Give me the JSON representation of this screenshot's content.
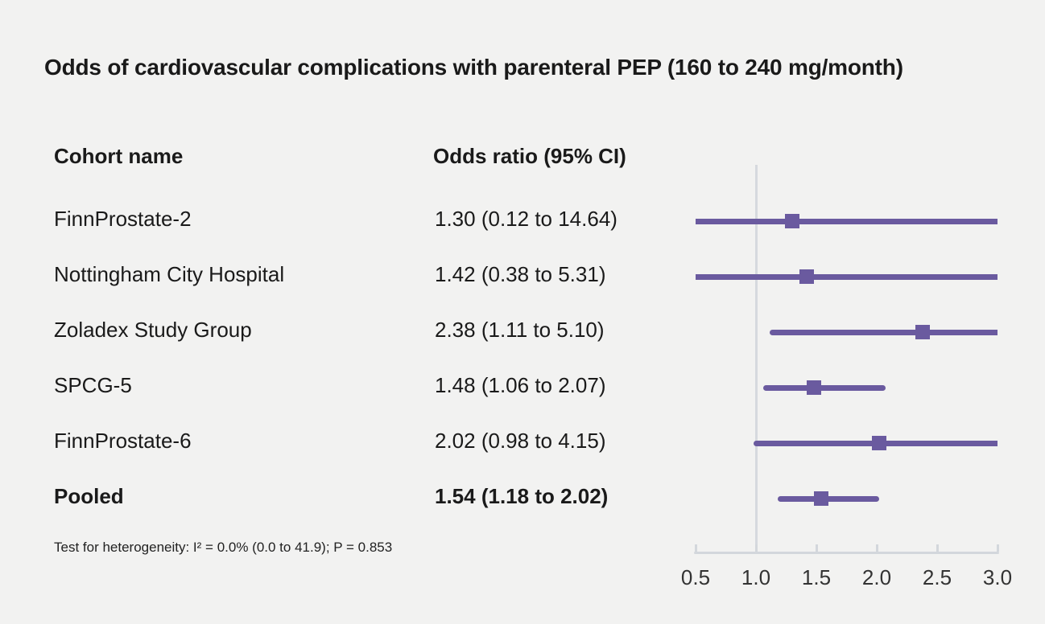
{
  "chart_data": {
    "type": "forest",
    "title": "Odds of cardiovascular complications with parenteral PEP (160 to 240 mg/month)",
    "columns": [
      "Cohort name",
      "Odds ratio (95% CI)"
    ],
    "rows": [
      {
        "label": "FinnProstate-2",
        "display": "1.30 (0.12 to 14.64)",
        "or": 1.3,
        "ci_low": 0.12,
        "ci_high": 14.64,
        "pooled": false
      },
      {
        "label": "Nottingham City Hospital",
        "display": "1.42 (0.38 to 5.31)",
        "or": 1.42,
        "ci_low": 0.38,
        "ci_high": 5.31,
        "pooled": false
      },
      {
        "label": "Zoladex Study Group",
        "display": "2.38 (1.11 to 5.10)",
        "or": 2.38,
        "ci_low": 1.11,
        "ci_high": 5.1,
        "pooled": false
      },
      {
        "label": "SPCG-5",
        "display": "1.48 (1.06 to 2.07)",
        "or": 1.48,
        "ci_low": 1.06,
        "ci_high": 2.07,
        "pooled": false
      },
      {
        "label": "FinnProstate-6",
        "display": "2.02 (0.98 to 4.15)",
        "or": 2.02,
        "ci_low": 0.98,
        "ci_high": 4.15,
        "pooled": false
      },
      {
        "label": "Pooled",
        "display": "1.54 (1.18 to 2.02)",
        "or": 1.54,
        "ci_low": 1.18,
        "ci_high": 2.02,
        "pooled": true
      }
    ],
    "x_axis": {
      "min": 0.5,
      "max": 3.0,
      "ticks": [
        0.5,
        1.0,
        1.5,
        2.0,
        2.5,
        3.0
      ],
      "tick_labels": [
        "0.5",
        "1.0",
        "1.5",
        "2.0",
        "2.5",
        "3.0"
      ],
      "reference_line": 1.0,
      "grid": false
    },
    "footnote": "Test for heterogeneity: I² = 0.0% (0.0 to 41.9); P = 0.853",
    "legend": null,
    "colors": {
      "marker": "#6a5a9f",
      "ci_line": "#6a5a9f",
      "reference_line": "#d6d9de",
      "axis": "#d3d7dc",
      "background": "#f2f2f1",
      "text": "#1a1a1a"
    }
  }
}
